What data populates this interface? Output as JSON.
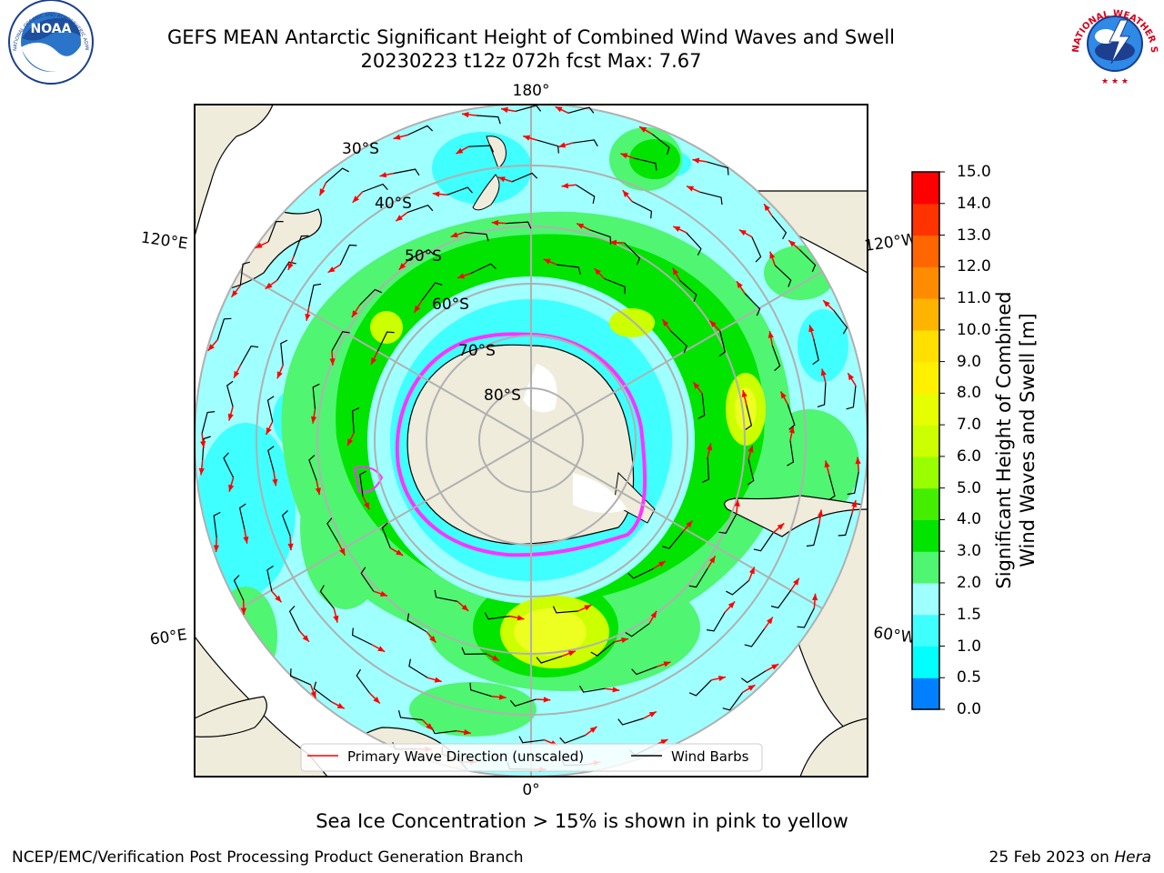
{
  "header": {
    "title_line1": "GEFS MEAN Antarctic Significant Height of Combined Wind Waves and Swell",
    "title_line2": "20230223 t12z 072h fcst   Max: 7.67"
  },
  "logos": {
    "noaa_text": "NOAA",
    "noaa_ring_text": "NATIONAL OCEANIC AND ATMOSPHERIC ADMINISTRATION · U.S. DEPARTMENT OF COMMERCE",
    "nws_ring_text": "NATIONAL WEATHER SERVICE"
  },
  "map": {
    "longitude_labels": {
      "top": "180°",
      "bottom": "0°",
      "upper_left": "120°E",
      "upper_right": "120°W",
      "lower_left": "60°E",
      "lower_right": "60°W"
    },
    "latitude_labels": [
      "30°S",
      "40°S",
      "50°S",
      "60°S",
      "70°S",
      "80°S"
    ],
    "legend": {
      "wave_direction": "Primary Wave Direction (unscaled)",
      "wind_barbs": "Wind Barbs"
    },
    "colors": {
      "land": "#efecdc",
      "ocean_light": "#a0ffff",
      "ocean_cyan": "#40ffff",
      "green_light": "#50f571",
      "green": "#00e400",
      "yellow_green": "#ccff00",
      "yellow": "#ecff20",
      "ice": "#ff33ff",
      "arrow": "#ff0000",
      "grid": "#b0b0b0"
    }
  },
  "colorbar": {
    "label_line1": "Significant Height of Combined",
    "label_line2": "Wind Waves and Swell [m]",
    "ticks": [
      "15.0",
      "14.0",
      "13.0",
      "12.0",
      "11.0",
      "10.0",
      "9.0",
      "8.0",
      "7.0",
      "6.0",
      "5.0",
      "4.0",
      "3.0",
      "2.0",
      "1.5",
      "1.0",
      "0.5",
      "0.0"
    ],
    "band_colors": [
      "#ff0000",
      "#ff3300",
      "#ff6600",
      "#ff8c00",
      "#ffb400",
      "#ffe000",
      "#fff000",
      "#e6ff00",
      "#ccff00",
      "#99ff00",
      "#44ee00",
      "#00e400",
      "#50f571",
      "#a0ffff",
      "#40ffff",
      "#00ffff",
      "#0080ff",
      "#0000ff"
    ]
  },
  "notes": {
    "sea_ice": "Sea Ice Concentration > 15% is shown in pink to yellow"
  },
  "footer": {
    "left": "NCEP/EMC/Verification Post Processing Product Generation Branch",
    "right_date": "25 Feb 2023 on ",
    "right_machine": "Hera"
  }
}
